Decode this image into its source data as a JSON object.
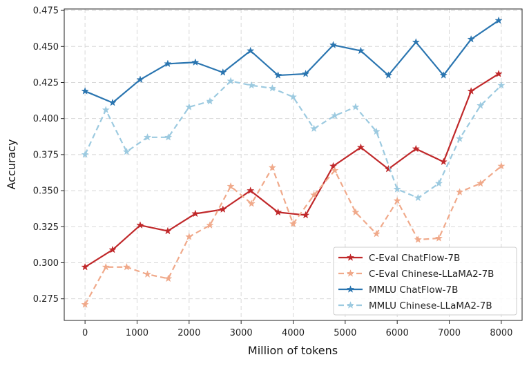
{
  "chart_data": {
    "type": "line",
    "title": "",
    "xlabel": "Million of tokens",
    "ylabel": "Accuracy",
    "xlim": [
      -400,
      8400
    ],
    "ylim": [
      0.26,
      0.476
    ],
    "xticks": [
      0,
      1000,
      2000,
      3000,
      4000,
      5000,
      6000,
      7000,
      8000
    ],
    "yticks": [
      0.275,
      0.3,
      0.325,
      0.35,
      0.375,
      0.4,
      0.425,
      0.45,
      0.475
    ],
    "xtick_labels": [
      "0",
      "1000",
      "2000",
      "3000",
      "4000",
      "5000",
      "6000",
      "7000",
      "8000"
    ],
    "ytick_labels": [
      "0.275",
      "0.300",
      "0.325",
      "0.350",
      "0.375",
      "0.400",
      "0.425",
      "0.450",
      "0.475"
    ],
    "grid": true,
    "legend_position": "bottom-right",
    "series": [
      {
        "name": "C-Eval ChatFlow-7B",
        "color": "#c0282a",
        "style": "solid",
        "x": [
          0,
          530,
          1060,
          1590,
          2120,
          2650,
          3180,
          3710,
          4240,
          4770,
          5300,
          5830,
          6360,
          6890,
          7420,
          7950
        ],
        "y": [
          0.297,
          0.309,
          0.326,
          0.322,
          0.334,
          0.337,
          0.35,
          0.335,
          0.333,
          0.367,
          0.38,
          0.365,
          0.379,
          0.37,
          0.419,
          0.431
        ]
      },
      {
        "name": "C-Eval Chinese-LLaMA2-7B",
        "color": "#f0a98a",
        "style": "dashed",
        "x": [
          0,
          400,
          800,
          1200,
          1600,
          2000,
          2400,
          2800,
          3200,
          3600,
          4000,
          4400,
          4800,
          5200,
          5600,
          6000,
          6400,
          6800,
          7200,
          7600,
          8000
        ],
        "y": [
          0.271,
          0.297,
          0.297,
          0.292,
          0.289,
          0.318,
          0.326,
          0.353,
          0.341,
          0.366,
          0.327,
          0.347,
          0.364,
          0.335,
          0.32,
          0.343,
          0.316,
          0.317,
          0.349,
          0.355,
          0.367
        ]
      },
      {
        "name": "MMLU ChatFlow-7B",
        "color": "#2a75b0",
        "style": "solid",
        "x": [
          0,
          530,
          1060,
          1590,
          2120,
          2650,
          3180,
          3710,
          4240,
          4770,
          5300,
          5830,
          6360,
          6890,
          7420,
          7950
        ],
        "y": [
          0.419,
          0.411,
          0.427,
          0.438,
          0.439,
          0.432,
          0.447,
          0.43,
          0.431,
          0.451,
          0.447,
          0.43,
          0.453,
          0.43,
          0.455,
          0.468
        ]
      },
      {
        "name": "MMLU Chinese-LLaMA2-7B",
        "color": "#9ccae0",
        "style": "dashed",
        "x": [
          0,
          400,
          800,
          1200,
          1600,
          2000,
          2400,
          2800,
          3200,
          3600,
          4000,
          4400,
          4800,
          5200,
          5600,
          6000,
          6400,
          6800,
          7200,
          7600,
          8000
        ],
        "y": [
          0.375,
          0.406,
          0.377,
          0.387,
          0.387,
          0.408,
          0.412,
          0.426,
          0.423,
          0.421,
          0.415,
          0.393,
          0.402,
          0.408,
          0.391,
          0.351,
          0.345,
          0.355,
          0.386,
          0.409,
          0.423
        ]
      }
    ]
  }
}
